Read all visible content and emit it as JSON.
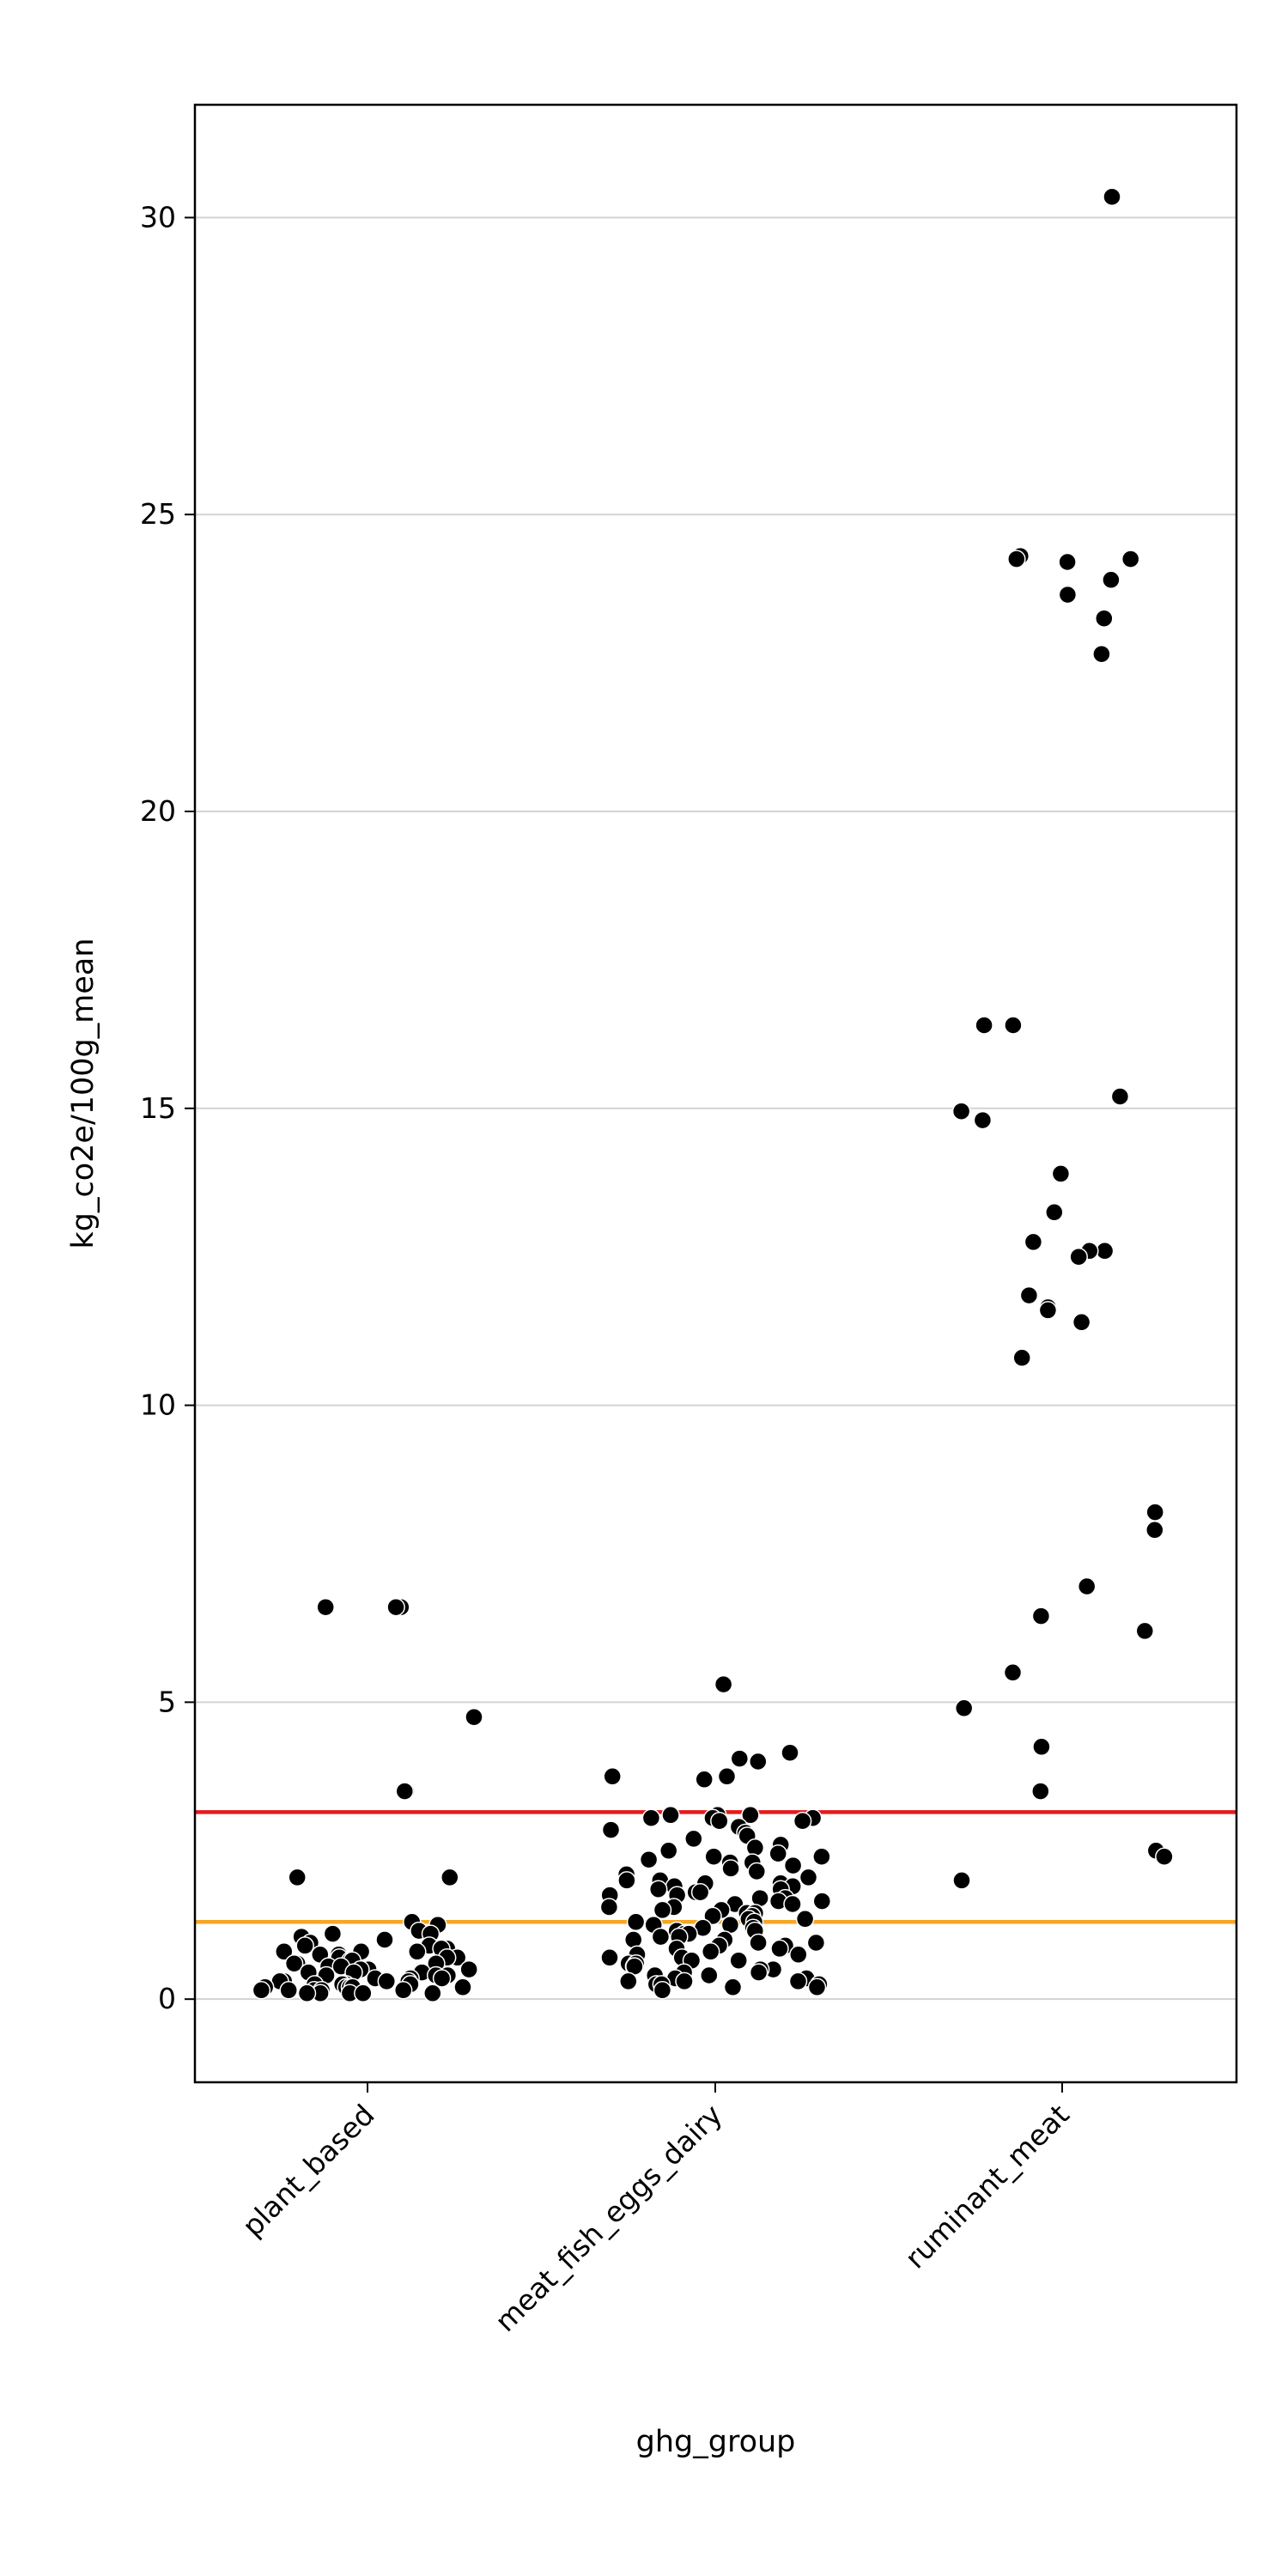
{
  "chart_data": {
    "type": "scatter",
    "title": "",
    "xlabel": "ghg_group",
    "ylabel": "kg_co2e/100g_mean",
    "categories": [
      "plant_based",
      "meat_fish_eggs_dairy",
      "ruminant_meat"
    ],
    "ylim": [
      -1.4,
      31.9
    ],
    "yticks": [
      "0",
      "5",
      "10",
      "15",
      "20",
      "25",
      "30"
    ],
    "grid": "horizontal",
    "reference_lines": [
      {
        "y": 3.15,
        "color": "#e41a1c"
      },
      {
        "y": 1.3,
        "color": "#f5a623"
      }
    ],
    "point_color": "#000000",
    "series": [
      {
        "category": "plant_based",
        "values": [
          6.6,
          6.6,
          6.6,
          4.75,
          3.5,
          3.5,
          2.05,
          2.05,
          1.3,
          1.25,
          1.15,
          1.1,
          1.1,
          1.05,
          1.0,
          0.95,
          0.9,
          0.9,
          0.85,
          0.85,
          0.8,
          0.8,
          0.8,
          0.75,
          0.75,
          0.7,
          0.7,
          0.7,
          0.65,
          0.65,
          0.6,
          0.6,
          0.6,
          0.55,
          0.55,
          0.5,
          0.5,
          0.5,
          0.45,
          0.45,
          0.45,
          0.4,
          0.4,
          0.4,
          0.35,
          0.35,
          0.35,
          0.3,
          0.3,
          0.3,
          0.3,
          0.25,
          0.25,
          0.25,
          0.25,
          0.2,
          0.2,
          0.2,
          0.2,
          0.2,
          0.15,
          0.15,
          0.15,
          0.15,
          0.15,
          0.1,
          0.1,
          0.1,
          0.1,
          0.1
        ]
      },
      {
        "category": "meat_fish_eggs_dairy",
        "values": [
          5.3,
          4.15,
          4.05,
          4.0,
          3.75,
          3.75,
          3.7,
          3.1,
          3.1,
          3.1,
          3.05,
          3.05,
          3.05,
          3.0,
          3.0,
          2.9,
          2.85,
          2.8,
          2.75,
          2.7,
          2.6,
          2.55,
          2.5,
          2.45,
          2.4,
          2.4,
          2.35,
          2.3,
          2.3,
          2.25,
          2.2,
          2.15,
          2.1,
          2.05,
          2.0,
          2.0,
          1.95,
          1.95,
          1.9,
          1.9,
          1.85,
          1.85,
          1.8,
          1.8,
          1.75,
          1.75,
          1.7,
          1.7,
          1.65,
          1.65,
          1.6,
          1.6,
          1.55,
          1.55,
          1.5,
          1.5,
          1.45,
          1.45,
          1.4,
          1.4,
          1.35,
          1.35,
          1.3,
          1.3,
          1.25,
          1.25,
          1.2,
          1.2,
          1.15,
          1.15,
          1.1,
          1.1,
          1.05,
          1.05,
          1.0,
          1.0,
          0.95,
          0.95,
          0.9,
          0.9,
          0.85,
          0.85,
          0.8,
          0.8,
          0.75,
          0.75,
          0.7,
          0.7,
          0.65,
          0.65,
          0.6,
          0.6,
          0.55,
          0.55,
          0.5,
          0.5,
          0.45,
          0.45,
          0.4,
          0.4,
          0.35,
          0.35,
          0.3,
          0.3,
          0.3,
          0.25,
          0.25,
          0.25,
          0.2,
          0.2,
          0.15
        ]
      },
      {
        "category": "ruminant_meat",
        "values": [
          30.35,
          24.3,
          24.25,
          24.25,
          24.2,
          23.9,
          23.65,
          23.25,
          22.65,
          16.4,
          16.4,
          15.2,
          14.95,
          14.8,
          13.9,
          13.25,
          12.75,
          12.6,
          12.6,
          12.5,
          11.85,
          11.65,
          11.6,
          11.4,
          10.8,
          8.2,
          7.9,
          6.95,
          6.45,
          6.2,
          5.5,
          4.9,
          4.25,
          3.5,
          2.5,
          2.4,
          2.0
        ]
      }
    ]
  }
}
